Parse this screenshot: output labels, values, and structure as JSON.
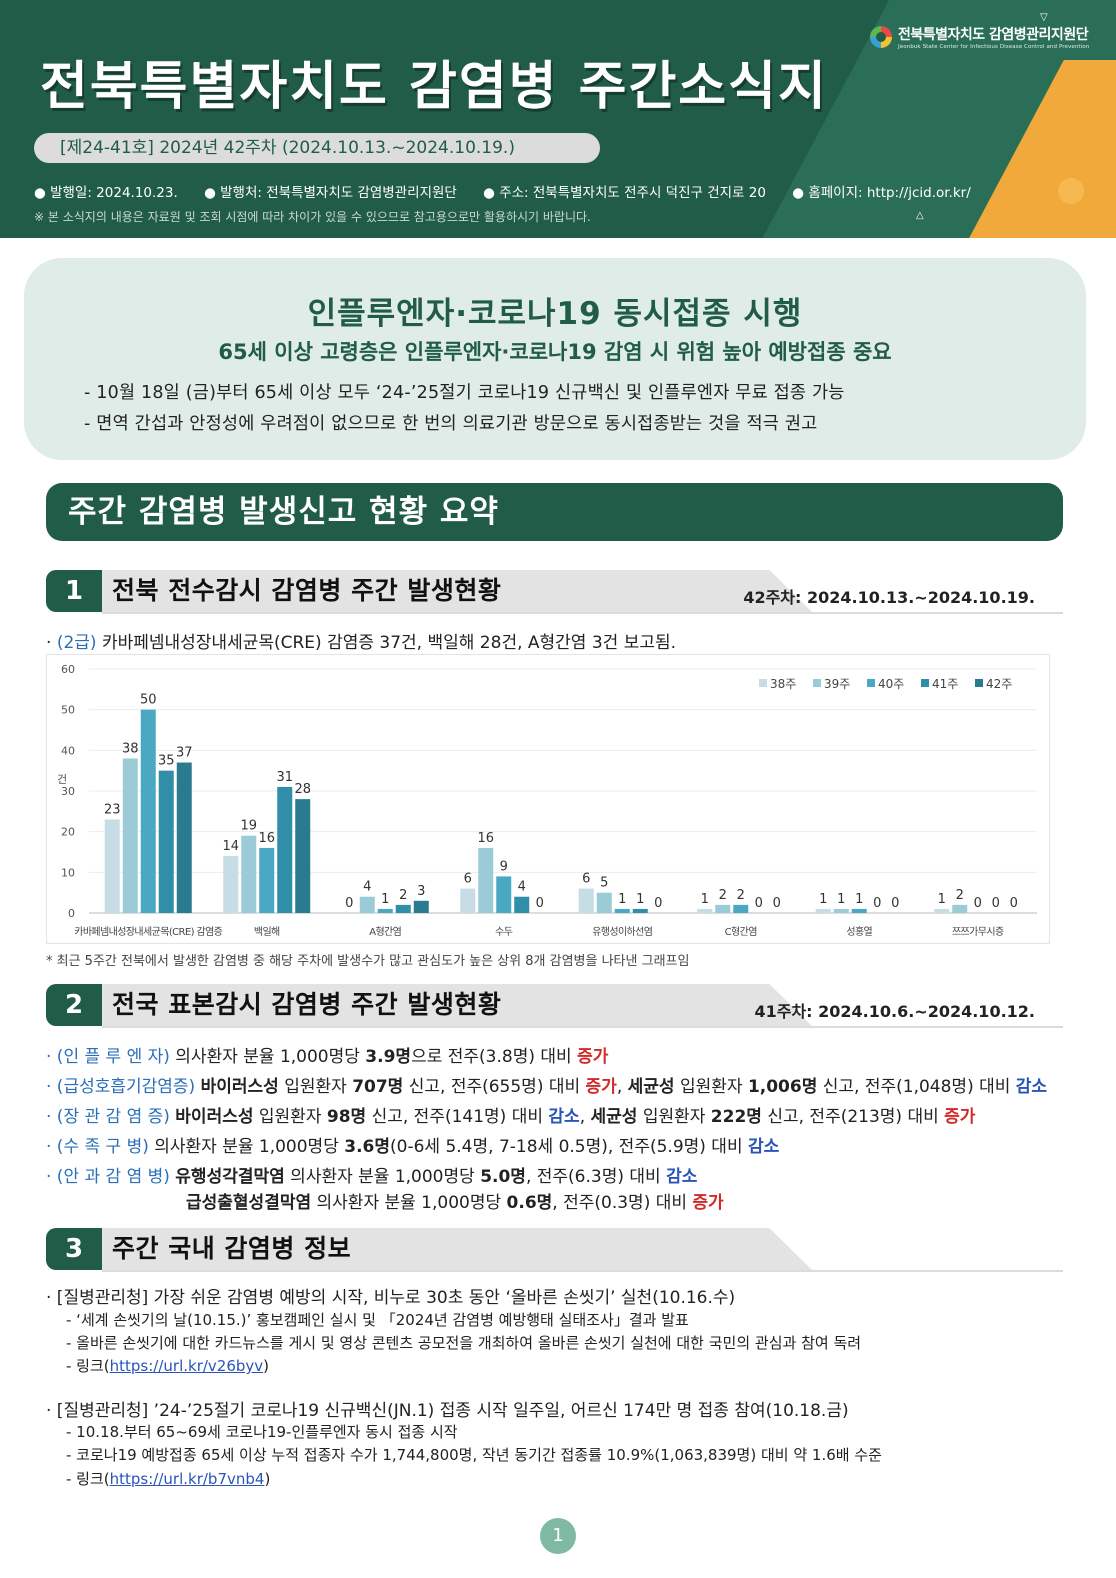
{
  "header": {
    "org_name_kr": "전북특별자치도 감염병관리지원단",
    "org_name_en": "Jeonbuk State Center for Infectious Disease Control and Prevention",
    "title": "전북특별자치도 감염병 주간소식지",
    "issue": "[제24-41호] 2024년 42주차 (2024.10.13.~2024.10.19.)",
    "pub_date": "● 발행일: 2024.10.23.",
    "publisher": "● 발행처: 전북특별자치도 감염병관리지원단",
    "address": "● 주소: 전북특별자치도 전주시 덕진구 건지로 20",
    "homepage": "● 홈페이지: http://jcid.or.kr/",
    "note": "※ 본 소식지의 내용은 자료원 및 조회 시점에 따라 차이가 있을 수 있으므로 참고용으로만 활용하시기 바랍니다."
  },
  "headline": {
    "title": "인플루엔자·코로나19 동시접종 시행",
    "subtitle": "65세 이상 고령층은 인플루엔자·코로나19 감염 시 위험 높아 예방접종 중요",
    "bullet1": "- 10월 18일 (금)부터 65세 이상 모두 ‘24-’25절기 코로나19 신규백신 및 인플루엔자 무료 접종 가능",
    "bullet2": "- 면역 간섭과 안정성에 우려점이 없으므로 한 번의 의료기관 방문으로 동시접종받는 것을 적극 권고"
  },
  "summary_title": "주간 감염병 발생신고 현황 요약",
  "section1": {
    "num": "1",
    "title": "전북 전수감시 감염병 주간 발생현황",
    "date": "42주차: 2024.10.13.~2024.10.19.",
    "text_prefix": "· ",
    "text_grade": "(2급)",
    "text_body": " 카바페넴내성장내세균목(CRE) 감염증 37건, 백일해 28건, A형간염 3건 보고됨.",
    "chart_note": "* 최근 5주간 전북에서 발생한 감염병 중 해당 주차에 발생수가 많고 관심도가 높은 상위 8개 감염병을 나타낸 그래프임"
  },
  "chart_data": {
    "type": "bar",
    "ylabel": "건",
    "ylim": [
      0,
      60
    ],
    "yticks": [
      0,
      10,
      20,
      30,
      40,
      50,
      60
    ],
    "categories": [
      "카바페넴내성장내세균목(CRE) 감염증",
      "백일해",
      "A형간염",
      "수두",
      "유행성이하선염",
      "C형간염",
      "성홍열",
      "쯔쯔가무시증"
    ],
    "legend_position": "top-right",
    "series": [
      {
        "name": "38주",
        "color": "#c6dde6",
        "values": [
          23,
          14,
          0,
          6,
          6,
          1,
          1,
          1
        ]
      },
      {
        "name": "39주",
        "color": "#9ccbd8",
        "values": [
          38,
          19,
          4,
          16,
          5,
          2,
          1,
          2
        ]
      },
      {
        "name": "40주",
        "color": "#4aa8c2",
        "values": [
          50,
          16,
          1,
          9,
          1,
          2,
          1,
          0
        ]
      },
      {
        "name": "41주",
        "color": "#318ea8",
        "values": [
          35,
          31,
          2,
          4,
          1,
          0,
          0,
          0
        ]
      },
      {
        "name": "42주",
        "color": "#2a7a90",
        "values": [
          37,
          28,
          3,
          0,
          0,
          0,
          0,
          0
        ]
      }
    ]
  },
  "section2": {
    "num": "2",
    "title": "전국 표본감시 감염병 주간 발생현황",
    "date": "41주차: 2024.10.6.~2024.10.12.",
    "rows": [
      {
        "label": "· (인 플 루 엔 자)",
        "parts": [
          " 의사환자 분율 1,000명당 ",
          "3.9명",
          "으로 전주(3.8명) 대비 ",
          "증가"
        ]
      },
      {
        "label": "· (급성호흡기감염증)",
        "parts": [
          " ",
          "바이러스성",
          " 입원환자 ",
          "707명",
          " 신고, 전주(655명) 대비 ",
          "증가",
          ", ",
          "세균성",
          " 입원환자 ",
          "1,006명",
          " 신고, 전주(1,048명) 대비 ",
          "감소"
        ]
      },
      {
        "label": "· (장 관 감 염 증)",
        "parts": [
          " ",
          "바이러스성",
          " 입원환자 ",
          "98명",
          " 신고, 전주(141명) 대비 ",
          "감소",
          ", ",
          "세균성",
          " 입원환자 ",
          "222명",
          " 신고, 전주(213명) 대비 ",
          "증가"
        ]
      },
      {
        "label": "· (수 족 구 병)",
        "parts": [
          " 의사환자 분율 1,000명당 ",
          "3.6명",
          "(0-6세 5.4명, 7-18세 0.5명), 전주(5.9명) 대비 ",
          "감소"
        ]
      },
      {
        "label": "· (안 과 감 염 병)",
        "parts": [
          " ",
          "유행성각결막염",
          " 의사환자 분율 1,000명당 ",
          "5.0명",
          ", 전주(6.3명) 대비 ",
          "감소"
        ]
      },
      {
        "label": "",
        "parts": [
          "급성출혈성결막염",
          " 의사환자 분율 1,000명당 ",
          "0.6명",
          ", 전주(0.3명) 대비 ",
          "증가"
        ]
      }
    ]
  },
  "section3": {
    "num": "3",
    "title": "주간 국내 감염병 정보",
    "item1_title": "· [질병관리청] 가장 쉬운 감염병 예방의 시작, 비누로 30초 동안 ‘올바른 손씻기’ 실천(10.16.수)",
    "item1_sub1": "- ‘세계 손씻기의 날(10.15.)’ 홍보캠페인 실시 및 「2024년 감염병 예방행태 실태조사」결과 발표",
    "item1_sub2": "- 올바른 손씻기에 대한 카드뉴스를 게시 및 영상 콘텐츠 공모전을 개최하여 올바른 손씻기 실천에 대한 국민의 관심과 참여 독려",
    "item1_link_prefix": "- 링크(",
    "item1_link": "https://url.kr/v26byv",
    "item2_title": "· [질병관리청] ’24-’25절기 코로나19 신규백신(JN.1) 접종 시작 일주일, 어르신 174만 명 접종 참여(10.18.금)",
    "item2_sub1": "- 10.18.부터 65~69세 코로나19-인플루엔자 동시 접종 시작",
    "item2_sub2": "- 코로나19 예방접종 65세 이상 누적 접종자 수가 1,744,800명, 작년 동기간 접종률 10.9%(1,063,839명) 대비 약 1.6배 수준",
    "item2_link_prefix": "- 링크(",
    "item2_link": "https://url.kr/b7vnb4",
    "link_suffix": ")"
  },
  "page_number": "1"
}
